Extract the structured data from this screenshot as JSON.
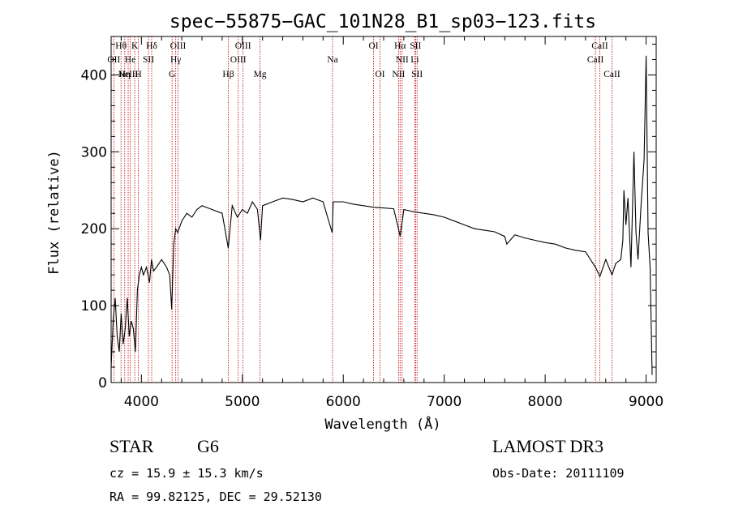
{
  "chart_data": {
    "type": "line",
    "title": "spec−55875−GAC_101N28_B1_sp03−123.fits",
    "xlabel": "Wavelength (Å)",
    "ylabel": "Flux (relative)",
    "xlim": [
      3700,
      9100
    ],
    "ylim": [
      0,
      450
    ],
    "xticks": [
      4000,
      5000,
      6000,
      7000,
      8000,
      9000
    ],
    "yticks": [
      0,
      100,
      200,
      300,
      400
    ],
    "xtick_labels": [
      "4000",
      "5000",
      "6000",
      "7000",
      "8000",
      "9000"
    ],
    "ytick_labels": [
      "0",
      "100",
      "200",
      "300",
      "400"
    ],
    "series": [
      {
        "name": "flux",
        "x": [
          3700,
          3720,
          3740,
          3760,
          3780,
          3800,
          3820,
          3840,
          3860,
          3880,
          3900,
          3920,
          3940,
          3960,
          3980,
          4000,
          4020,
          4050,
          4080,
          4100,
          4120,
          4150,
          4200,
          4250,
          4280,
          4300,
          4320,
          4340,
          4360,
          4400,
          4450,
          4500,
          4550,
          4600,
          4700,
          4800,
          4860,
          4900,
          4950,
          5000,
          5050,
          5100,
          5150,
          5180,
          5200,
          5300,
          5400,
          5500,
          5600,
          5700,
          5800,
          5890,
          5900,
          6000,
          6100,
          6200,
          6300,
          6400,
          6500,
          6550,
          6563,
          6600,
          6700,
          6800,
          6900,
          7000,
          7100,
          7200,
          7300,
          7400,
          7500,
          7600,
          7620,
          7700,
          7800,
          7900,
          8000,
          8100,
          8200,
          8300,
          8400,
          8498,
          8542,
          8600,
          8662,
          8700,
          8750,
          8770,
          8780,
          8800,
          8820,
          8850,
          8880,
          8900,
          8920,
          8950,
          8980,
          9000,
          9020,
          9040,
          9060
        ],
        "y": [
          20,
          80,
          110,
          60,
          40,
          90,
          50,
          70,
          110,
          60,
          80,
          70,
          40,
          120,
          140,
          150,
          140,
          150,
          130,
          160,
          145,
          150,
          160,
          150,
          140,
          95,
          180,
          200,
          195,
          210,
          220,
          215,
          225,
          230,
          225,
          220,
          175,
          230,
          215,
          225,
          220,
          235,
          225,
          185,
          230,
          235,
          240,
          238,
          235,
          240,
          235,
          195,
          235,
          235,
          232,
          230,
          228,
          227,
          226,
          198,
          190,
          225,
          222,
          220,
          218,
          215,
          210,
          205,
          200,
          198,
          196,
          190,
          180,
          192,
          188,
          185,
          182,
          180,
          175,
          172,
          170,
          150,
          138,
          160,
          140,
          155,
          160,
          185,
          250,
          205,
          240,
          150,
          300,
          195,
          160,
          230,
          290,
          425,
          195,
          150,
          10
        ],
        "color": "#000000"
      }
    ],
    "lines": [
      {
        "name": "OII",
        "x": 3727,
        "row": 1
      },
      {
        "name": "Hθ",
        "x": 3798,
        "row": 0
      },
      {
        "name": "Hη",
        "x": 3835,
        "row": 2
      },
      {
        "name": "NeIII",
        "x": 3869,
        "row": 2
      },
      {
        "name": "K",
        "x": 3934,
        "row": 0
      },
      {
        "name": "He",
        "x": 3889,
        "row": 1
      },
      {
        "name": "H",
        "x": 3969,
        "row": 2
      },
      {
        "name": "SII",
        "x": 4070,
        "row": 1
      },
      {
        "name": "Hδ",
        "x": 4102,
        "row": 0
      },
      {
        "name": "G",
        "x": 4304,
        "row": 2
      },
      {
        "name": "Hγ",
        "x": 4340,
        "row": 1
      },
      {
        "name": "OIII",
        "x": 4363,
        "row": 0
      },
      {
        "name": "Hβ",
        "x": 4861,
        "row": 2
      },
      {
        "name": "OIII",
        "x": 4959,
        "row": 1
      },
      {
        "name": "OIII",
        "x": 5007,
        "row": 0
      },
      {
        "name": "Mg",
        "x": 5175,
        "row": 2
      },
      {
        "name": "Na",
        "x": 5894,
        "row": 1
      },
      {
        "name": "OI",
        "x": 6300,
        "row": 0
      },
      {
        "name": "OI",
        "x": 6364,
        "row": 2
      },
      {
        "name": "NII",
        "x": 6548,
        "row": 2
      },
      {
        "name": "Hα",
        "x": 6563,
        "row": 0
      },
      {
        "name": "NII",
        "x": 6583,
        "row": 1
      },
      {
        "name": "Li",
        "x": 6708,
        "row": 1
      },
      {
        "name": "SII",
        "x": 6716,
        "row": 0
      },
      {
        "name": "SII",
        "x": 6731,
        "row": 2
      },
      {
        "name": "CaII",
        "x": 8498,
        "row": 1
      },
      {
        "name": "CaII",
        "x": 8542,
        "row": 0
      },
      {
        "name": "CaII",
        "x": 8662,
        "row": 2
      }
    ]
  },
  "info": {
    "object_type": "STAR",
    "subclass": "G6",
    "survey": "LAMOST DR3",
    "redshift": "cz = 15.9 ± 15.3 km/s",
    "obs_date": "Obs-Date: 20111109",
    "coords": "RA =  99.82125, DEC =  29.52130"
  }
}
